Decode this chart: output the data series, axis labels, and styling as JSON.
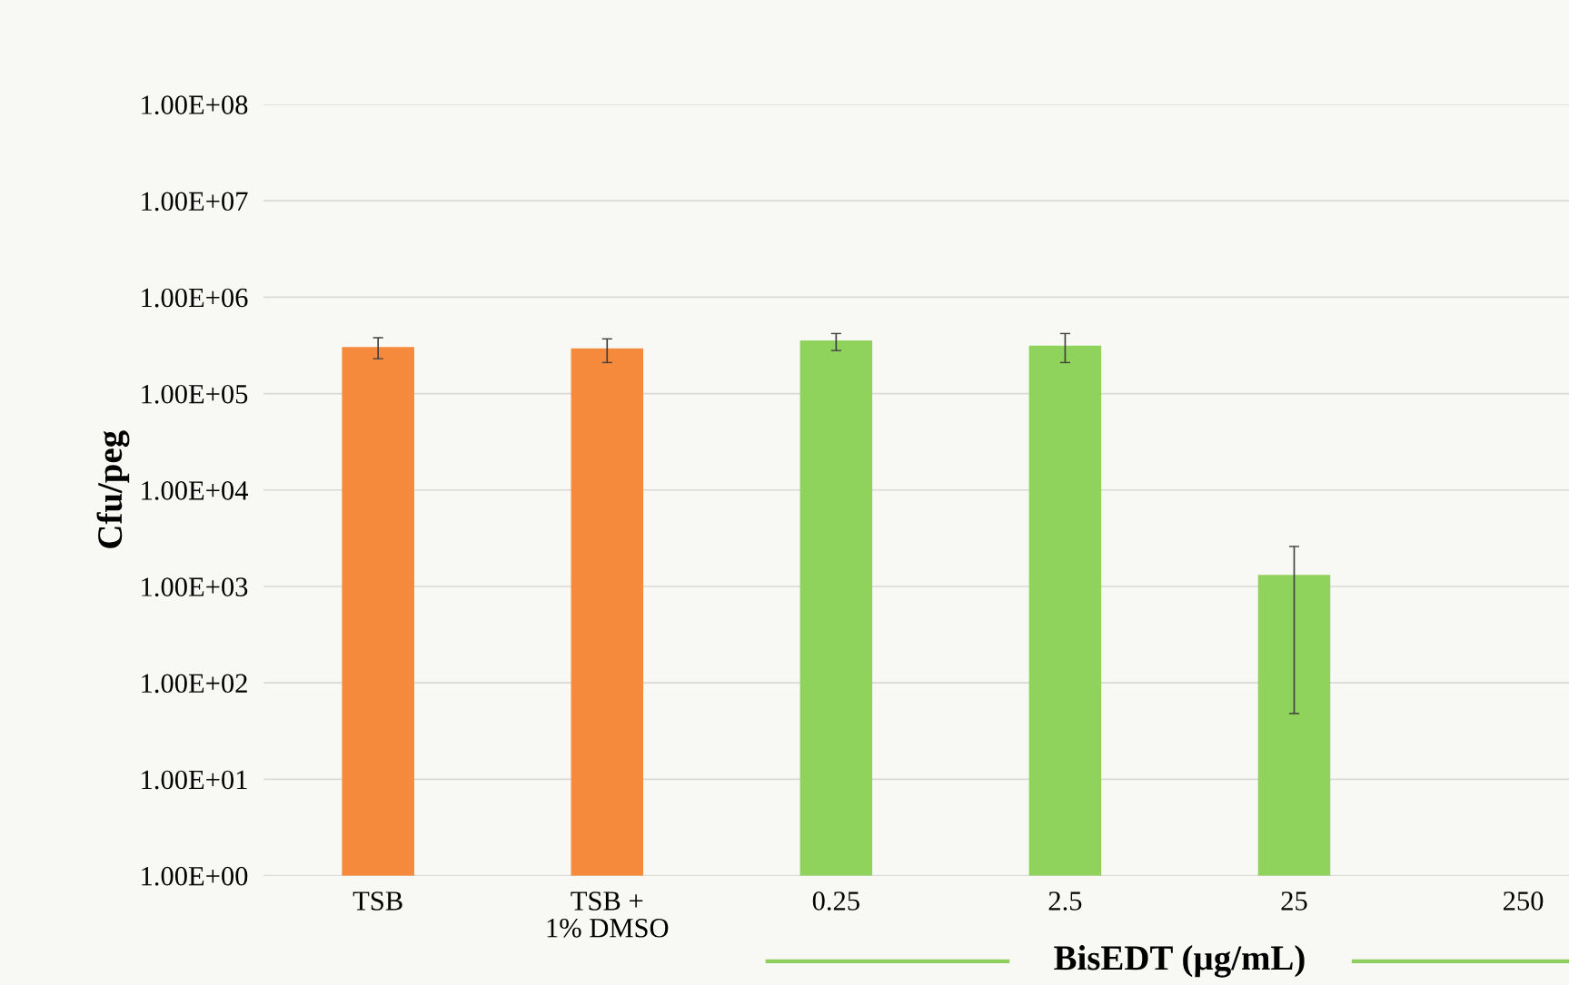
{
  "chart_data": {
    "type": "bar",
    "ylabel": "Cfu/peg",
    "xlabel": "BisEDT (µg/mL)",
    "categories": [
      "TSB",
      "TSB +\n1% DMSO",
      "0.25",
      "2.5",
      "25",
      "250"
    ],
    "values": [
      300000,
      290000,
      350000,
      310000,
      1300,
      null
    ],
    "colors": [
      "#f58a3c",
      "#f58a3c",
      "#8fd35c",
      "#8fd35c",
      "#8fd35c",
      "#8fd35c"
    ],
    "errors": [
      [
        230000,
        380000
      ],
      [
        210000,
        370000
      ],
      [
        280000,
        420000
      ],
      [
        210000,
        420000
      ],
      [
        48,
        2600
      ],
      null
    ],
    "log": "y",
    "ylim": [
      1,
      100000000
    ],
    "yticks": [
      {
        "value": 1,
        "label": "1.00E+00"
      },
      {
        "value": 10,
        "label": "1.00E+01"
      },
      {
        "value": 100,
        "label": "1.00E+02"
      },
      {
        "value": 1000,
        "label": "1.00E+03"
      },
      {
        "value": 10000,
        "label": "1.00E+04"
      },
      {
        "value": 100000,
        "label": "1.00E+05"
      },
      {
        "value": 1000000,
        "label": "1.00E+06"
      },
      {
        "value": 10000000,
        "label": "1.00E+07"
      },
      {
        "value": 100000000,
        "label": "1.00E+08"
      }
    ],
    "grid": "y"
  }
}
